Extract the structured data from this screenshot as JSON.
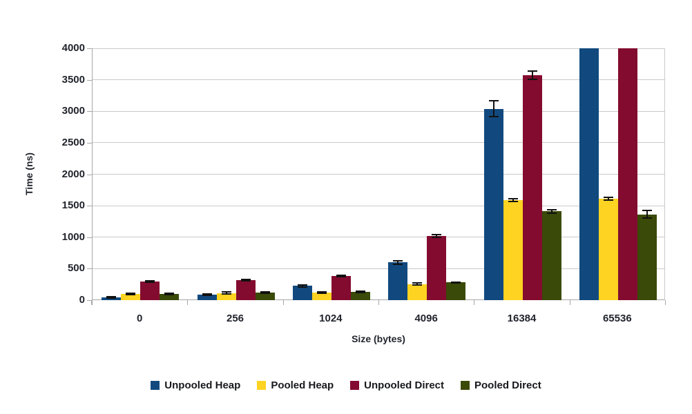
{
  "chart_data": {
    "type": "bar",
    "title": "",
    "xlabel": "Size (bytes)",
    "ylabel": "Time (ns)",
    "categories": [
      "0",
      "256",
      "1024",
      "4096",
      "16384",
      "65536"
    ],
    "series": [
      {
        "name": "Unpooled Heap",
        "color": "#11497E",
        "values": [
          40,
          90,
          225,
          600,
          3040,
          4200
        ],
        "errors": [
          10,
          12,
          15,
          25,
          130,
          null
        ],
        "clipped_at_ymax": [
          false,
          false,
          false,
          false,
          false,
          true
        ]
      },
      {
        "name": "Pooled Heap",
        "color": "#FFD321",
        "values": [
          100,
          115,
          125,
          255,
          1590,
          1610
        ],
        "errors": [
          10,
          15,
          10,
          15,
          25,
          20
        ],
        "clipped_at_ymax": [
          false,
          false,
          false,
          false,
          false,
          false
        ]
      },
      {
        "name": "Unpooled Direct",
        "color": "#830B2F",
        "values": [
          300,
          320,
          385,
          1020,
          3570,
          4200
        ],
        "errors": [
          10,
          10,
          15,
          25,
          65,
          null
        ],
        "clipped_at_ymax": [
          false,
          false,
          false,
          false,
          false,
          true
        ]
      },
      {
        "name": "Pooled Direct",
        "color": "#3A4A08",
        "values": [
          100,
          125,
          130,
          280,
          1410,
          1360
        ],
        "errors": [
          10,
          10,
          12,
          10,
          25,
          60
        ],
        "clipped_at_ymax": [
          false,
          false,
          false,
          false,
          false,
          false
        ]
      }
    ],
    "ylim": [
      0,
      4000
    ],
    "ytick_step": 500,
    "grid": true,
    "error_bars": true,
    "legend_position": "bottom",
    "note": "Unpooled Heap and Unpooled Direct bars at 65536 exceed the axis maximum and are clipped at 4000"
  },
  "style": {
    "grid_color": "#c9c9c9",
    "axis_color": "#a6a6a6",
    "tick_text_color": "#21242c",
    "error_bar_color": "#111111",
    "background": "#ffffff"
  }
}
